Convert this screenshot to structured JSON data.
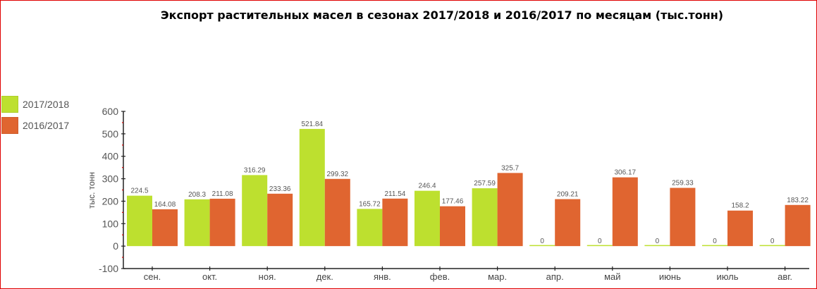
{
  "title": "Экспорт растительных масел в сезонах 2017/2018 и 2016/2017 по месяцам (тыс.тонн)",
  "legend": [
    {
      "label": "2017/2018",
      "color": "#bde02f"
    },
    {
      "label": "2016/2017",
      "color": "#e06530"
    }
  ],
  "chart_data": {
    "type": "bar",
    "title": "Экспорт растительных масел в сезонах 2017/2018 и 2016/2017 по месяцам (тыс.тонн)",
    "xlabel": "",
    "ylabel": "тыс. тонн",
    "ylim": [
      -100,
      600
    ],
    "yticks": [
      -100,
      0,
      100,
      200,
      300,
      400,
      500,
      600
    ],
    "grid": false,
    "legend_position": "left",
    "categories": [
      "сен.",
      "окт.",
      "ноя.",
      "дек.",
      "янв.",
      "фев.",
      "мар.",
      "апр.",
      "май",
      "июнь",
      "июль",
      "авг."
    ],
    "series": [
      {
        "name": "2017/2018",
        "color": "#bde02f",
        "values": [
          224.5,
          208.3,
          316.29,
          521.84,
          165.72,
          246.4,
          257.59,
          0,
          0,
          0,
          0,
          0
        ]
      },
      {
        "name": "2016/2017",
        "color": "#e06530",
        "values": [
          164.08,
          211.08,
          233.36,
          299.32,
          211.54,
          177.46,
          325.7,
          209.21,
          306.17,
          259.33,
          158.2,
          183.22
        ]
      }
    ]
  }
}
